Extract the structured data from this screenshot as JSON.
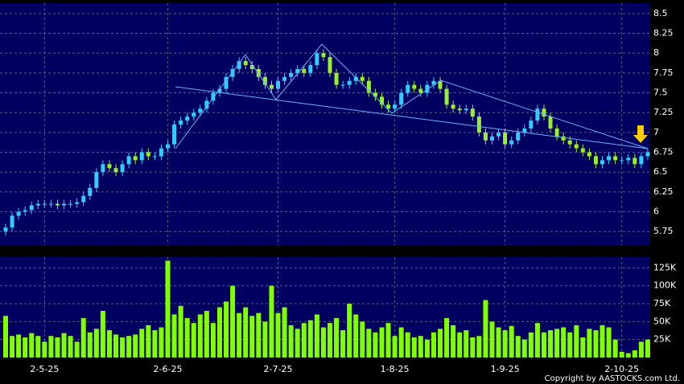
{
  "chart_data": [
    {
      "type": "candlestick",
      "up_color": "#33ccff",
      "down_color": "#99ee33",
      "grid": true,
      "ylim": [
        5.58,
        8.63
      ],
      "yticks": [
        5.75,
        6,
        6.25,
        6.5,
        6.75,
        7,
        7.25,
        7.5,
        7.75,
        8,
        8.25,
        8.5
      ],
      "open": [
        5.75,
        5.8,
        5.95,
        6.0,
        6.02,
        6.08,
        6.1,
        6.1,
        6.1,
        6.08,
        6.1,
        6.1,
        6.12,
        6.2,
        6.3,
        6.5,
        6.6,
        6.55,
        6.5,
        6.6,
        6.7,
        6.65,
        6.75,
        6.7,
        6.7,
        6.8,
        6.85,
        7.1,
        7.15,
        7.2,
        7.25,
        7.3,
        7.4,
        7.5,
        7.55,
        7.7,
        7.8,
        7.9,
        7.85,
        7.8,
        7.7,
        7.6,
        7.55,
        7.65,
        7.7,
        7.75,
        7.8,
        7.75,
        7.85,
        8.0,
        7.95,
        7.75,
        7.6,
        7.6,
        7.65,
        7.7,
        7.65,
        7.5,
        7.45,
        7.35,
        7.3,
        7.35,
        7.5,
        7.6,
        7.55,
        7.5,
        7.6,
        7.65,
        7.55,
        7.35,
        7.3,
        7.28,
        7.3,
        7.2,
        7.0,
        6.9,
        6.95,
        7.0,
        6.85,
        6.9,
        7.0,
        7.05,
        7.15,
        7.3,
        7.2,
        7.05,
        6.95,
        6.9,
        6.85,
        6.8,
        6.75,
        6.7,
        6.6,
        6.65,
        6.7,
        6.65,
        6.65,
        6.68,
        6.6,
        6.7
      ],
      "high": [
        5.85,
        6.0,
        6.05,
        6.07,
        6.13,
        6.15,
        6.15,
        6.15,
        6.15,
        6.15,
        6.15,
        6.17,
        6.25,
        6.35,
        6.55,
        6.65,
        6.65,
        6.6,
        6.65,
        6.75,
        6.75,
        6.8,
        6.8,
        6.75,
        6.85,
        6.9,
        7.15,
        7.2,
        7.25,
        7.3,
        7.35,
        7.45,
        7.55,
        7.6,
        7.75,
        7.85,
        7.95,
        7.95,
        7.9,
        7.85,
        7.75,
        7.65,
        7.7,
        7.75,
        7.8,
        7.85,
        7.85,
        7.9,
        8.05,
        8.05,
        8.0,
        7.8,
        7.65,
        7.7,
        7.75,
        7.75,
        7.7,
        7.55,
        7.5,
        7.4,
        7.4,
        7.55,
        7.65,
        7.65,
        7.6,
        7.65,
        7.7,
        7.7,
        7.6,
        7.4,
        7.35,
        7.35,
        7.35,
        7.25,
        7.05,
        7.0,
        7.05,
        7.05,
        6.95,
        7.05,
        7.1,
        7.2,
        7.35,
        7.35,
        7.25,
        7.1,
        7.0,
        6.95,
        6.9,
        6.85,
        6.8,
        6.75,
        6.7,
        6.75,
        6.75,
        6.7,
        6.73,
        6.73,
        6.75,
        6.8
      ],
      "low": [
        5.7,
        5.75,
        5.9,
        5.95,
        5.97,
        6.03,
        6.05,
        6.05,
        6.03,
        6.03,
        6.05,
        6.05,
        6.07,
        6.15,
        6.25,
        6.45,
        6.5,
        6.45,
        6.45,
        6.55,
        6.6,
        6.6,
        6.65,
        6.65,
        6.65,
        6.75,
        6.8,
        7.05,
        7.1,
        7.15,
        7.2,
        7.25,
        7.35,
        7.45,
        7.5,
        7.65,
        7.75,
        7.8,
        7.75,
        7.65,
        7.55,
        7.5,
        7.5,
        7.6,
        7.65,
        7.7,
        7.7,
        7.7,
        7.8,
        7.9,
        7.7,
        7.55,
        7.55,
        7.55,
        7.6,
        7.6,
        7.45,
        7.4,
        7.3,
        7.25,
        7.25,
        7.3,
        7.45,
        7.5,
        7.45,
        7.45,
        7.55,
        7.5,
        7.3,
        7.25,
        7.23,
        7.23,
        7.15,
        6.95,
        6.85,
        6.85,
        6.9,
        6.8,
        6.8,
        6.85,
        6.95,
        7.0,
        7.1,
        7.15,
        7.0,
        6.9,
        6.85,
        6.8,
        6.75,
        6.7,
        6.65,
        6.55,
        6.55,
        6.6,
        6.6,
        6.6,
        6.6,
        6.55,
        6.55,
        6.65
      ],
      "close": [
        5.8,
        5.95,
        6.0,
        6.02,
        6.08,
        6.1,
        6.1,
        6.1,
        6.08,
        6.1,
        6.1,
        6.12,
        6.2,
        6.3,
        6.5,
        6.6,
        6.55,
        6.5,
        6.6,
        6.7,
        6.65,
        6.75,
        6.7,
        6.7,
        6.8,
        6.85,
        7.1,
        7.15,
        7.2,
        7.25,
        7.3,
        7.4,
        7.5,
        7.55,
        7.7,
        7.8,
        7.9,
        7.85,
        7.8,
        7.7,
        7.6,
        7.55,
        7.65,
        7.7,
        7.75,
        7.8,
        7.75,
        7.85,
        8.0,
        7.95,
        7.75,
        7.6,
        7.6,
        7.65,
        7.7,
        7.65,
        7.5,
        7.45,
        7.35,
        7.3,
        7.35,
        7.5,
        7.6,
        7.55,
        7.5,
        7.6,
        7.65,
        7.55,
        7.35,
        7.3,
        7.28,
        7.3,
        7.2,
        7.0,
        6.9,
        6.95,
        7.0,
        6.85,
        6.9,
        7.0,
        7.05,
        7.15,
        7.3,
        7.2,
        7.05,
        6.95,
        6.9,
        6.85,
        6.8,
        6.75,
        6.7,
        6.6,
        6.65,
        6.7,
        6.65,
        6.65,
        6.68,
        6.6,
        6.7,
        6.75
      ]
    },
    {
      "type": "bar",
      "color": "#80ff00",
      "grid": true,
      "ylim": [
        0,
        140000
      ],
      "yticks": [
        {
          "value": 25000,
          "label": "25K"
        },
        {
          "value": 50000,
          "label": "50K"
        },
        {
          "value": 75000,
          "label": "75K"
        },
        {
          "value": 100000,
          "label": "100K"
        },
        {
          "value": 125000,
          "label": "125K"
        }
      ],
      "categories": [
        null,
        null,
        null,
        null,
        null,
        null,
        "2-5-25",
        null,
        null,
        null,
        null,
        null,
        null,
        null,
        null,
        null,
        null,
        null,
        null,
        null,
        null,
        null,
        null,
        null,
        null,
        "2-6-25",
        null,
        null,
        null,
        null,
        null,
        null,
        null,
        null,
        null,
        null,
        null,
        null,
        null,
        null,
        null,
        null,
        "2-7-25",
        null,
        null,
        null,
        null,
        null,
        null,
        null,
        null,
        null,
        null,
        null,
        null,
        null,
        null,
        null,
        null,
        null,
        "1-8-25",
        null,
        null,
        null,
        null,
        null,
        null,
        null,
        null,
        null,
        null,
        null,
        null,
        null,
        null,
        null,
        null,
        "1-9-25",
        null,
        null,
        null,
        null,
        null,
        null,
        null,
        null,
        null,
        null,
        null,
        null,
        null,
        null,
        null,
        null,
        null,
        "2-10-25",
        null,
        null,
        null,
        null
      ],
      "values": [
        58000,
        30000,
        32000,
        28000,
        34000,
        30000,
        22000,
        30000,
        28000,
        34000,
        30000,
        22000,
        55000,
        35000,
        40000,
        65000,
        38000,
        32000,
        28000,
        30000,
        32000,
        40000,
        45000,
        38000,
        42000,
        135000,
        60000,
        72000,
        55000,
        48000,
        60000,
        65000,
        48000,
        70000,
        78000,
        100000,
        62000,
        70000,
        58000,
        62000,
        50000,
        100000,
        62000,
        70000,
        45000,
        40000,
        48000,
        52000,
        60000,
        42000,
        48000,
        55000,
        38000,
        75000,
        60000,
        50000,
        40000,
        35000,
        42000,
        48000,
        30000,
        42000,
        35000,
        28000,
        30000,
        25000,
        35000,
        40000,
        55000,
        45000,
        35000,
        38000,
        28000,
        30000,
        80000,
        50000,
        42000,
        38000,
        44000,
        30000,
        25000,
        35000,
        48000,
        35000,
        38000,
        40000,
        42000,
        35000,
        45000,
        28000,
        40000,
        38000,
        45000,
        42000,
        25000,
        8000,
        6000,
        10000,
        22000,
        25000
      ],
      "copyright": "Copyright by AASTOCKS.com Ltd."
    }
  ]
}
